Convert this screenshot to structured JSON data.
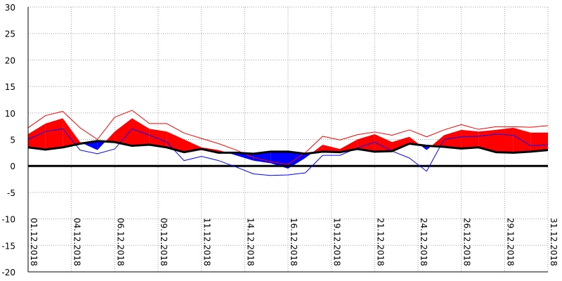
{
  "chart_data": {
    "type": "area",
    "title": "",
    "xlabel": "",
    "ylabel": "",
    "ylim": [
      -20,
      30
    ],
    "y_ticks": [
      30,
      25,
      20,
      15,
      10,
      5,
      0,
      -5,
      -10,
      -15,
      -20
    ],
    "x_tick_labels": [
      "01.12.2018",
      "04.12.2018",
      "06.12.2018",
      "09.12.2018",
      "11.12.2018",
      "14.12.2018",
      "16.12.2018",
      "19.12.2018",
      "21.12.2018",
      "24.12.2018",
      "26.12.2018",
      "29.12.2018",
      "31.12.2018"
    ],
    "x_tick_days": [
      1,
      3.5,
      6,
      8.5,
      11,
      13.5,
      16,
      18.5,
      21,
      23.5,
      26,
      28.5,
      31
    ],
    "grid": true,
    "days": [
      1,
      2,
      3,
      4,
      5,
      6,
      7,
      8,
      9,
      10,
      11,
      12,
      13,
      14,
      15,
      16,
      17,
      18,
      19,
      20,
      21,
      22,
      23,
      24,
      25,
      26,
      27,
      28,
      29,
      30,
      31
    ],
    "series": [
      {
        "role": "mean",
        "values": [
          6.0,
          8.0,
          9.0,
          4.5,
          3.0,
          6.5,
          9.0,
          7.0,
          6.5,
          5.0,
          3.5,
          3.0,
          2.0,
          1.0,
          0.5,
          -0.5,
          1.5,
          4.0,
          3.2,
          5.0,
          6.0,
          4.5,
          5.5,
          3.0,
          5.8,
          6.8,
          6.5,
          6.8,
          7.2,
          6.3,
          6.3
        ]
      },
      {
        "role": "normal",
        "values": [
          3.5,
          3.1,
          3.5,
          4.2,
          4.7,
          4.5,
          3.8,
          4.0,
          3.5,
          2.6,
          3.2,
          2.5,
          2.5,
          2.3,
          2.7,
          2.7,
          2.3,
          2.7,
          2.6,
          3.2,
          2.7,
          2.8,
          4.2,
          3.8,
          3.6,
          3.3,
          3.5,
          2.6,
          2.5,
          2.7,
          3.0
        ]
      },
      {
        "role": "max",
        "values": [
          7.2,
          9.5,
          10.3,
          7.2,
          5.0,
          9.2,
          10.5,
          8.0,
          8.0,
          6.2,
          5.2,
          4.2,
          3.0,
          1.6,
          0.8,
          0.3,
          2.5,
          5.6,
          4.9,
          5.9,
          6.4,
          5.8,
          6.8,
          5.5,
          6.8,
          7.8,
          6.9,
          7.4,
          7.4,
          7.3,
          7.6
        ]
      },
      {
        "role": "min",
        "values": [
          5.0,
          6.5,
          7.0,
          3.0,
          2.3,
          3.2,
          7.0,
          5.8,
          4.5,
          1.0,
          1.8,
          1.0,
          -0.2,
          -1.5,
          -1.8,
          -1.7,
          -1.3,
          2.0,
          2.0,
          3.4,
          4.5,
          2.8,
          1.5,
          -1.0,
          5.0,
          5.5,
          5.6,
          6.0,
          5.8,
          3.8,
          4.0
        ]
      }
    ],
    "colors": {
      "above_normal_fill": "#ff0000",
      "below_normal_fill": "#0000ff",
      "max_line": "#ff0000",
      "min_line": "#0000ff",
      "normal_line": "#000000",
      "zero_line": "#000000",
      "grid": "#a0a0a0",
      "axis": "#000000"
    }
  }
}
